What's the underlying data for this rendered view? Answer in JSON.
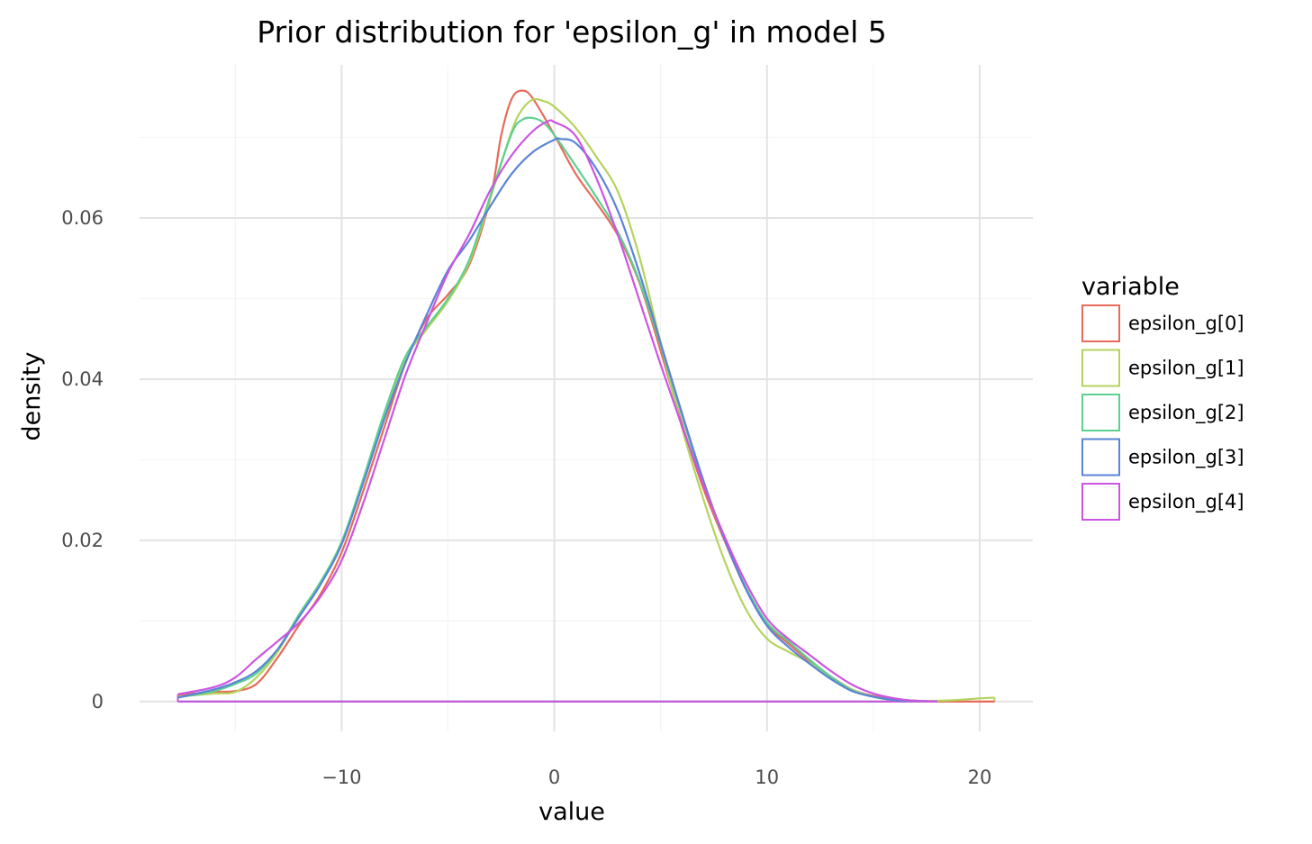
{
  "chart_data": {
    "type": "line",
    "title": "Prior distribution for 'epsilon_g' in model 5",
    "xlabel": "value",
    "ylabel": "density",
    "xlim": [
      -19.5,
      22.5
    ],
    "ylim": [
      -0.0037,
      0.079
    ],
    "x_ticks": [
      -10,
      0,
      10,
      20
    ],
    "x_tick_labels": [
      "−10",
      "0",
      "10",
      "20"
    ],
    "y_ticks": [
      0,
      0.02,
      0.04,
      0.06
    ],
    "y_tick_labels": [
      "0",
      "0.02",
      "0.04",
      "0.06"
    ],
    "grid": true,
    "legend": {
      "title": "variable",
      "position": "right"
    },
    "series": [
      {
        "name": "epsilon_g[0]",
        "color": "#e76b5a",
        "x": [
          -17.7,
          -16,
          -15,
          -14,
          -13,
          -12,
          -11,
          -10,
          -9,
          -8,
          -7,
          -6,
          -5,
          -4,
          -3,
          -2.5,
          -2,
          -1.5,
          -1,
          0,
          1,
          2,
          3,
          4,
          5,
          6,
          7,
          8,
          9,
          10,
          11,
          12,
          13,
          14,
          15,
          16,
          17,
          18,
          20.7
        ],
        "y": [
          0.0008,
          0.0012,
          0.0013,
          0.0022,
          0.0055,
          0.0095,
          0.0133,
          0.0185,
          0.026,
          0.034,
          0.042,
          0.0475,
          0.0505,
          0.0542,
          0.0625,
          0.0702,
          0.0748,
          0.0758,
          0.0748,
          0.0703,
          0.0655,
          0.0618,
          0.0578,
          0.052,
          0.0435,
          0.0345,
          0.0265,
          0.02,
          0.014,
          0.0096,
          0.0072,
          0.005,
          0.0031,
          0.0015,
          0.0007,
          0.0003,
          0.0001,
          0,
          0
        ]
      },
      {
        "name": "epsilon_g[1]",
        "color": "#b5d35c",
        "x": [
          -17.7,
          -16,
          -15,
          -14,
          -13,
          -12,
          -11,
          -10,
          -9,
          -8,
          -7,
          -6,
          -5,
          -4,
          -3,
          -2,
          -1.5,
          -1,
          -0.5,
          0,
          1,
          2,
          3,
          4,
          5,
          6,
          7,
          8,
          9,
          10,
          11,
          12,
          13,
          14,
          15,
          16,
          17,
          18,
          19,
          20,
          20.7
        ],
        "y": [
          0.0006,
          0.001,
          0.0012,
          0.003,
          0.0062,
          0.0108,
          0.0148,
          0.0198,
          0.0272,
          0.0355,
          0.0425,
          0.0462,
          0.0497,
          0.0545,
          0.0625,
          0.0708,
          0.0735,
          0.0747,
          0.0745,
          0.0738,
          0.0712,
          0.0675,
          0.0632,
          0.0552,
          0.0445,
          0.034,
          0.0252,
          0.0175,
          0.0115,
          0.0078,
          0.0062,
          0.0048,
          0.003,
          0.0015,
          0.0006,
          0.0002,
          0.0001,
          0.0001,
          0.0002,
          0.0004,
          0.0005
        ]
      },
      {
        "name": "epsilon_g[2]",
        "color": "#5cd08f",
        "x": [
          -17.7,
          -16,
          -15,
          -14,
          -13,
          -12,
          -11,
          -10,
          -9,
          -8,
          -7,
          -6,
          -5,
          -4,
          -3,
          -2,
          -1.5,
          -1,
          -0.5,
          0,
          1,
          2,
          3,
          4,
          5,
          6,
          7,
          8,
          9,
          10,
          11,
          12,
          13,
          14,
          15,
          16,
          17,
          18
        ],
        "y": [
          0.0005,
          0.0013,
          0.0022,
          0.0035,
          0.0065,
          0.0108,
          0.0148,
          0.0198,
          0.0275,
          0.0358,
          0.0428,
          0.0465,
          0.05,
          0.0548,
          0.0628,
          0.0705,
          0.0722,
          0.0724,
          0.0718,
          0.0703,
          0.0665,
          0.0625,
          0.0582,
          0.0522,
          0.0442,
          0.0355,
          0.0272,
          0.0202,
          0.0142,
          0.0098,
          0.0075,
          0.0052,
          0.0031,
          0.0014,
          0.0006,
          0.0002,
          0.0001,
          0
        ]
      },
      {
        "name": "epsilon_g[3]",
        "color": "#5b84d6",
        "x": [
          -17.7,
          -16,
          -15,
          -14,
          -13,
          -12,
          -11,
          -10,
          -9,
          -8,
          -7,
          -6,
          -5,
          -4,
          -3,
          -2,
          -1,
          0,
          0.3,
          1,
          2,
          3,
          4,
          5,
          6,
          7,
          8,
          9,
          10,
          11,
          12,
          13,
          14,
          15,
          16,
          17,
          18
        ],
        "y": [
          0.0005,
          0.0015,
          0.0024,
          0.0038,
          0.0065,
          0.0105,
          0.0145,
          0.0195,
          0.027,
          0.035,
          0.042,
          0.048,
          0.0535,
          0.0572,
          0.0615,
          0.0655,
          0.0682,
          0.0697,
          0.0698,
          0.0693,
          0.066,
          0.0608,
          0.0532,
          0.0445,
          0.0358,
          0.0275,
          0.0202,
          0.014,
          0.0094,
          0.0068,
          0.0047,
          0.0028,
          0.0013,
          0.0006,
          0.0002,
          0.0001,
          0
        ]
      },
      {
        "name": "epsilon_g[4]",
        "color": "#cc55e0",
        "x": [
          -17.7,
          -16,
          -15,
          -14,
          -13,
          -12,
          -11,
          -10,
          -9,
          -8,
          -7,
          -6,
          -5,
          -4,
          -3,
          -2,
          -1,
          -0.3,
          0,
          1,
          2,
          3,
          4,
          5,
          6,
          7,
          8,
          9,
          10,
          11,
          12,
          13,
          14,
          15,
          16,
          17,
          18
        ],
        "y": [
          0.0009,
          0.0018,
          0.003,
          0.0053,
          0.0075,
          0.0098,
          0.013,
          0.0175,
          0.0245,
          0.0325,
          0.0405,
          0.047,
          0.0532,
          0.058,
          0.0635,
          0.0678,
          0.0708,
          0.072,
          0.0719,
          0.0702,
          0.0648,
          0.0578,
          0.0498,
          0.0418,
          0.0342,
          0.027,
          0.0205,
          0.0148,
          0.0103,
          0.0078,
          0.0058,
          0.0038,
          0.0021,
          0.001,
          0.0004,
          0.0001,
          0
        ]
      }
    ]
  }
}
